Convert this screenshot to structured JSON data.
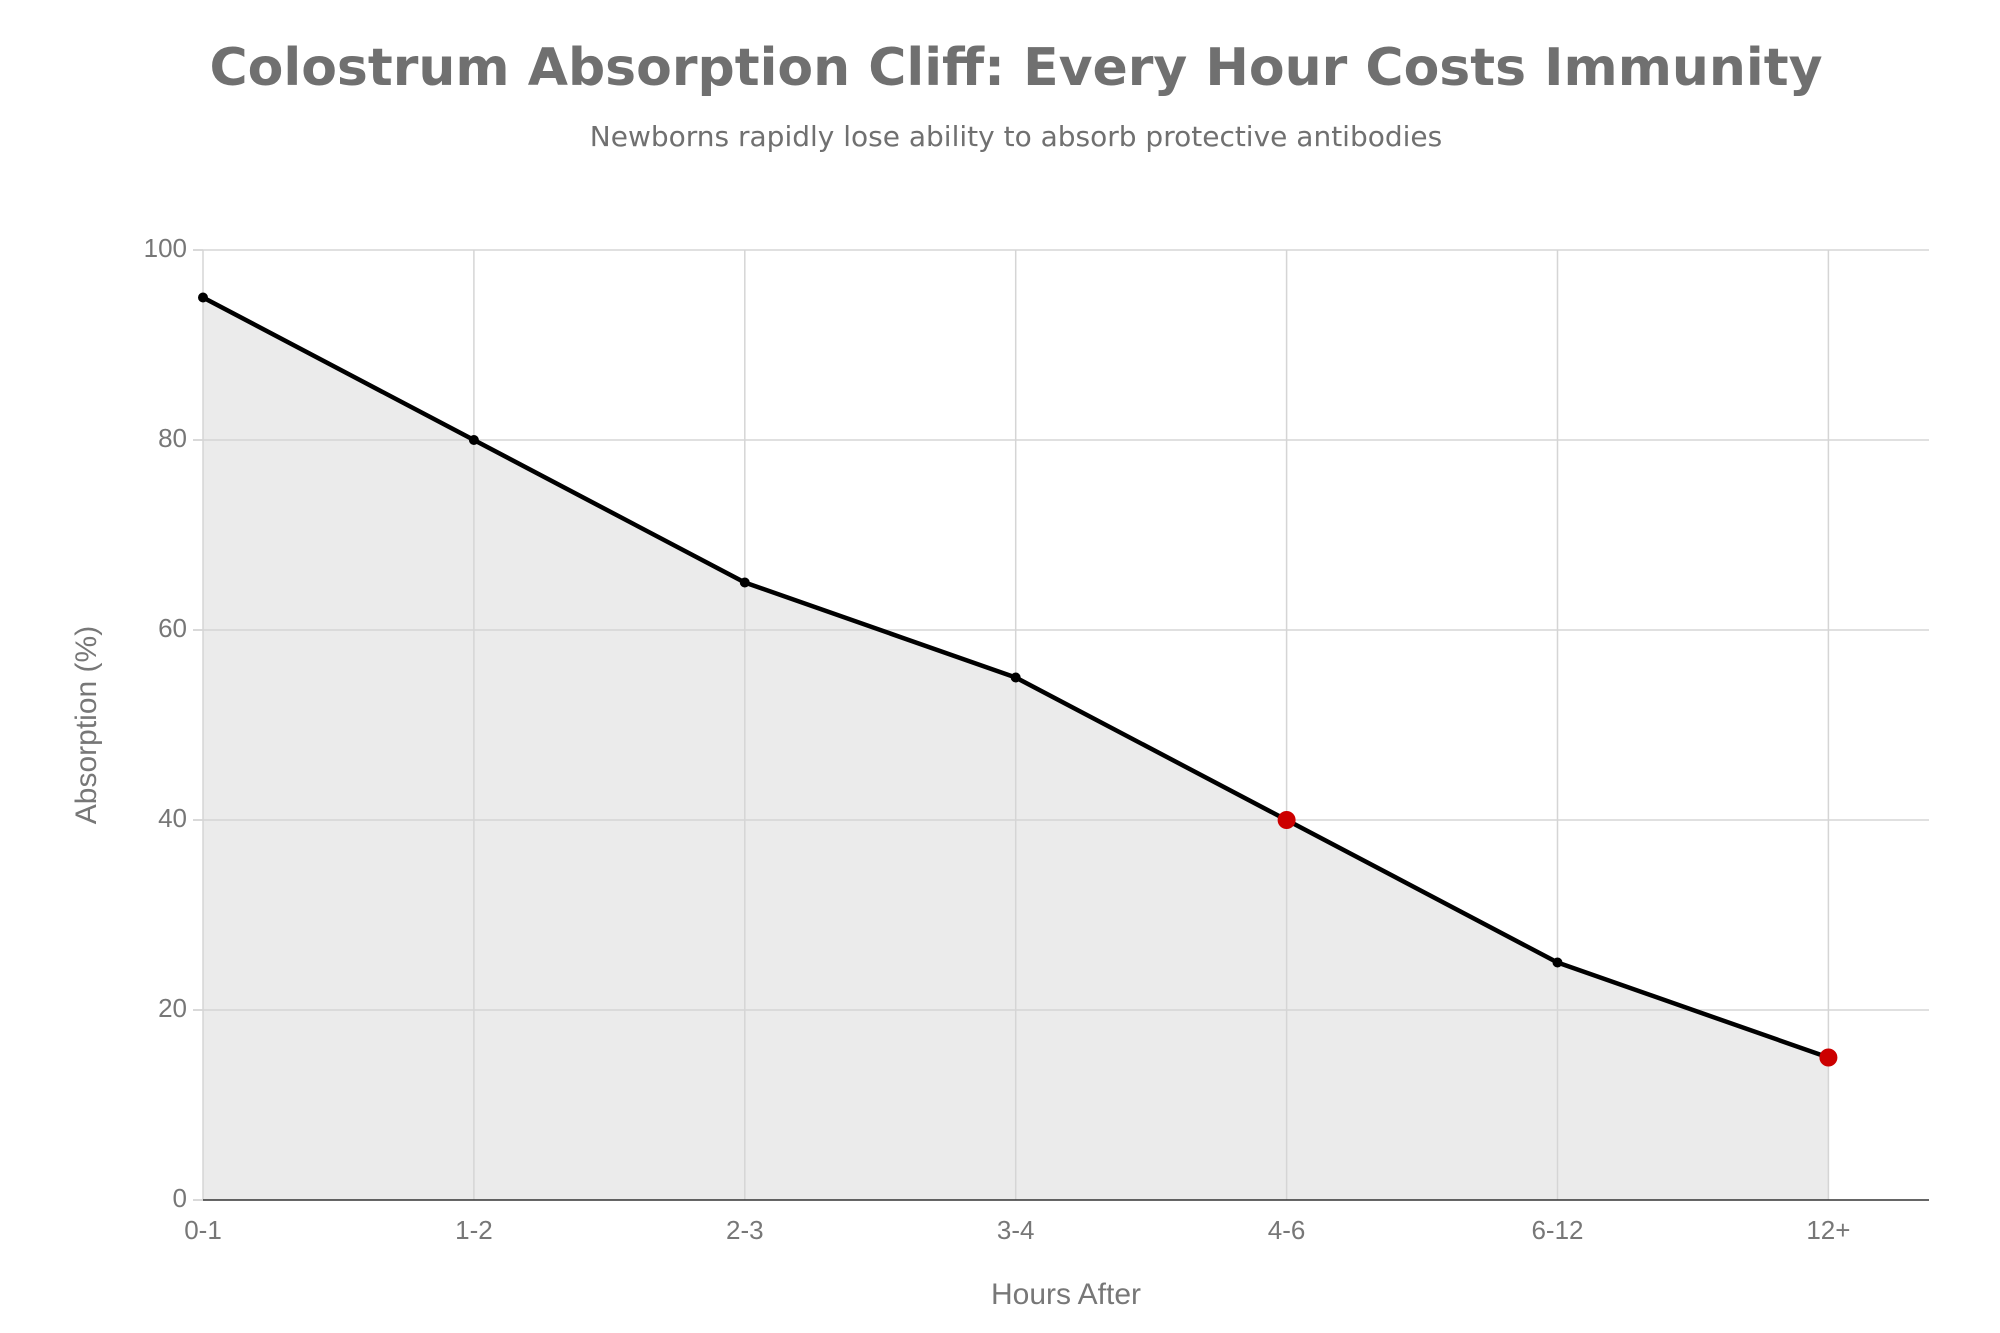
{
  "chart_data": {
    "type": "line",
    "title": "Colostrum Absorption Cliff: Every Hour Costs Immunity",
    "subtitle": "Newborns rapidly lose ability to absorb protective antibodies",
    "x_label": "Hours After",
    "y_label": "Absorption (%)",
    "categories": [
      "0-1",
      "1-2",
      "2-3",
      "3-4",
      "4-6",
      "6-12",
      "12+"
    ],
    "series": [
      {
        "name": "Absorption",
        "color": "#000000",
        "area_color": "#ebebeb",
        "values": [
          95,
          80,
          65,
          55,
          40,
          25,
          15
        ],
        "marker_colors": [
          "#000000",
          "#000000",
          "#000000",
          "#000000",
          "#cc0000",
          "#000000",
          "#cc0000"
        ]
      }
    ],
    "ylim": [
      0,
      100
    ],
    "yticks": [
      0,
      20,
      40,
      60,
      80,
      100
    ],
    "grid": true
  }
}
